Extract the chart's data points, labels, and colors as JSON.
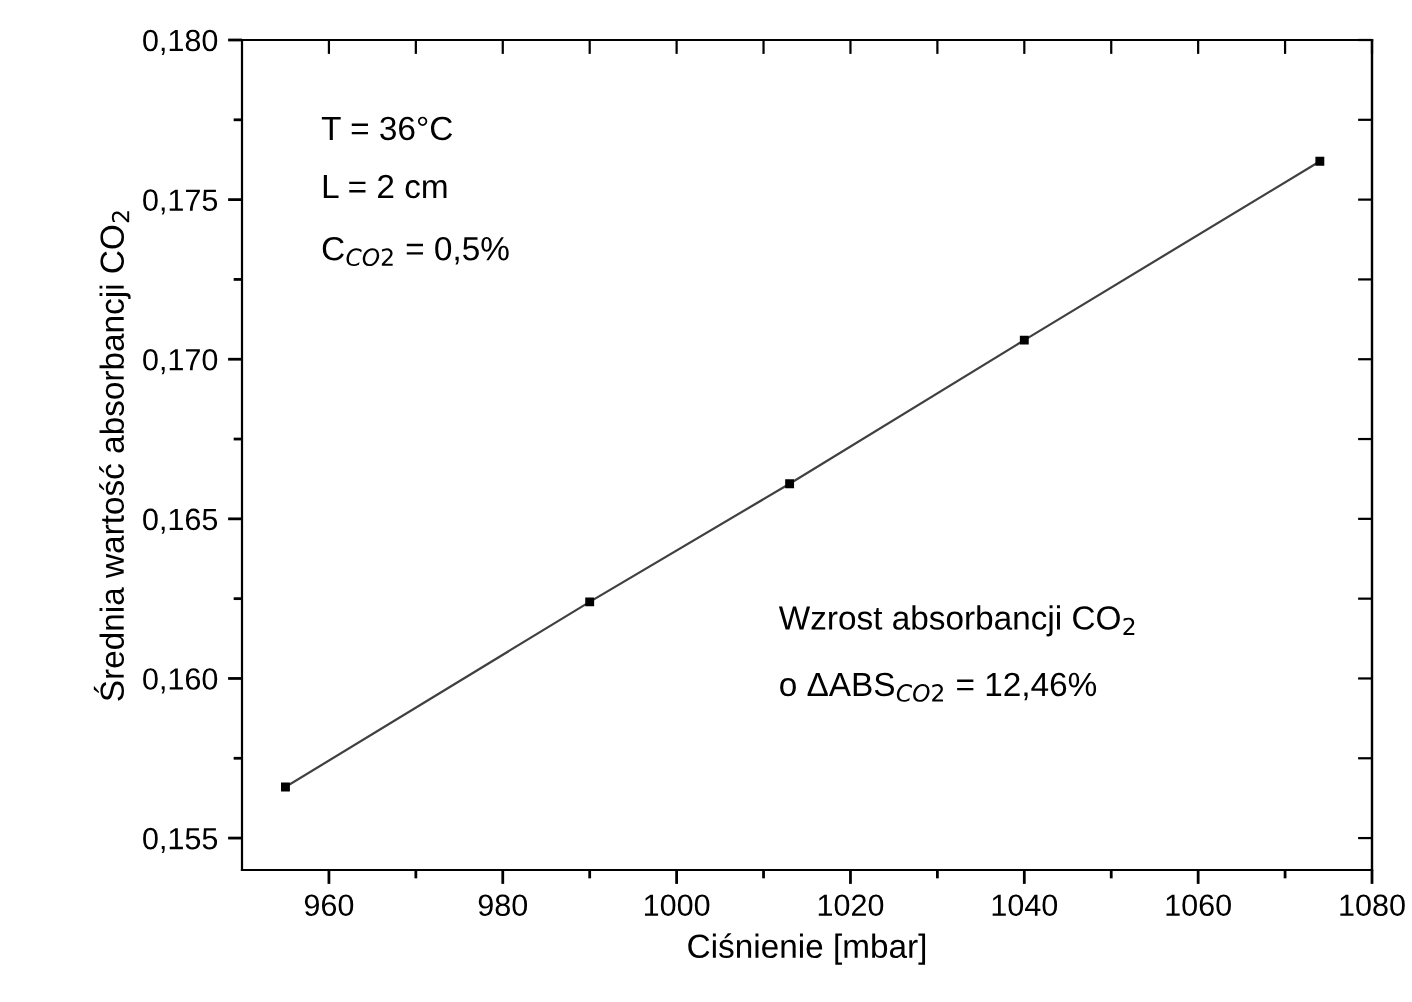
{
  "chart_data": {
    "type": "line",
    "xlabel": "Ciśnienie [mbar]",
    "ylabel": "Średnia wartość absorbancji CO$_{2}$",
    "x": [
      955,
      990,
      1013,
      1040,
      1074
    ],
    "series": [
      {
        "color": "#000000",
        "values": [
          0.1566,
          0.1624,
          0.1661,
          0.1706,
          0.1762
        ]
      }
    ],
    "marker": "square",
    "line_style": "solid",
    "grid": false,
    "legend": false,
    "xlim": [
      950,
      1080
    ],
    "ylim": [
      0.154,
      0.18
    ],
    "xticks": [
      960,
      {
        "value": 970,
        "label": null
      },
      980,
      {
        "value": 990,
        "label": null
      },
      1000,
      {
        "value": 1010,
        "label": null
      },
      1020,
      {
        "value": 1030,
        "label": null
      },
      1040,
      {
        "value": 1050,
        "label": null
      },
      1060,
      {
        "value": 1070,
        "label": null
      },
      1080
    ],
    "yticks": [
      {
        "value": 0.155,
        "label": "0,155"
      },
      {
        "value": 0.1575,
        "label": null
      },
      {
        "value": 0.16,
        "label": "0,160"
      },
      {
        "value": 0.1625,
        "label": null
      },
      {
        "value": 0.165,
        "label": "0,165"
      },
      {
        "value": 0.1675,
        "label": null
      },
      {
        "value": 0.17,
        "label": "0,170"
      },
      {
        "value": 0.1725,
        "label": null
      },
      {
        "value": 0.175,
        "label": "0,175"
      },
      {
        "value": 0.1775,
        "label": null
      },
      {
        "value": 0.18,
        "label": "0,180"
      }
    ],
    "annotations": [
      "T = 36°C",
      "L = 2 cm",
      "C$_{CO2}$ = 0,5%",
      "Wzrost absorbancji CO$_{2}$",
      "o ΔABS$_{CO2}$ = 12,46%"
    ]
  }
}
